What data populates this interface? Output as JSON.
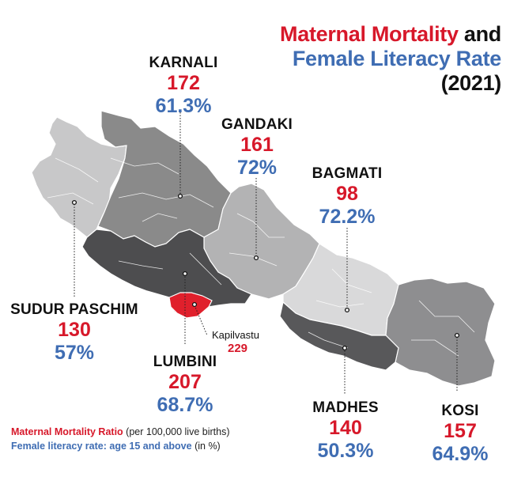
{
  "title": {
    "part1": "Maternal Mortality",
    "part2": "and",
    "part3": "Female Literacy Rate",
    "part4": "(2021)"
  },
  "provinces": [
    {
      "id": "karnali",
      "name": "KARNALI",
      "maternal_mortality": "172",
      "female_literacy": "61.3%",
      "fill": "#8a8a8a"
    },
    {
      "id": "gandaki",
      "name": "GANDAKI",
      "maternal_mortality": "161",
      "female_literacy": "72%",
      "fill": "#b3b3b4"
    },
    {
      "id": "bagmati",
      "name": "BAGMATI",
      "maternal_mortality": "98",
      "female_literacy": "72.2%",
      "fill": "#d9d9da"
    },
    {
      "id": "sudur-paschim",
      "name": "SUDUR PASCHIM",
      "maternal_mortality": "130",
      "female_literacy": "57%",
      "fill": "#c8c8c9"
    },
    {
      "id": "lumbini",
      "name": "LUMBINI",
      "maternal_mortality": "207",
      "female_literacy": "68.7%",
      "fill": "#4d4d4f"
    },
    {
      "id": "madhes",
      "name": "MADHES",
      "maternal_mortality": "140",
      "female_literacy": "50.3%",
      "fill": "#58585a"
    },
    {
      "id": "kosi",
      "name": "KOSI",
      "maternal_mortality": "157",
      "female_literacy": "64.9%",
      "fill": "#8e8e90"
    }
  ],
  "district_highlight": {
    "name": "Kapilvastu",
    "maternal_mortality": "229",
    "fill": "#e0202c"
  },
  "legend": {
    "mmr_label": "Maternal Mortality Ratio",
    "mmr_note": "(per 100,000 live births)",
    "literacy_label": "Female literacy rate: age 15 and above",
    "literacy_note": "(in %)"
  },
  "colors": {
    "red": "#d7182a",
    "blue": "#3f6db3"
  }
}
